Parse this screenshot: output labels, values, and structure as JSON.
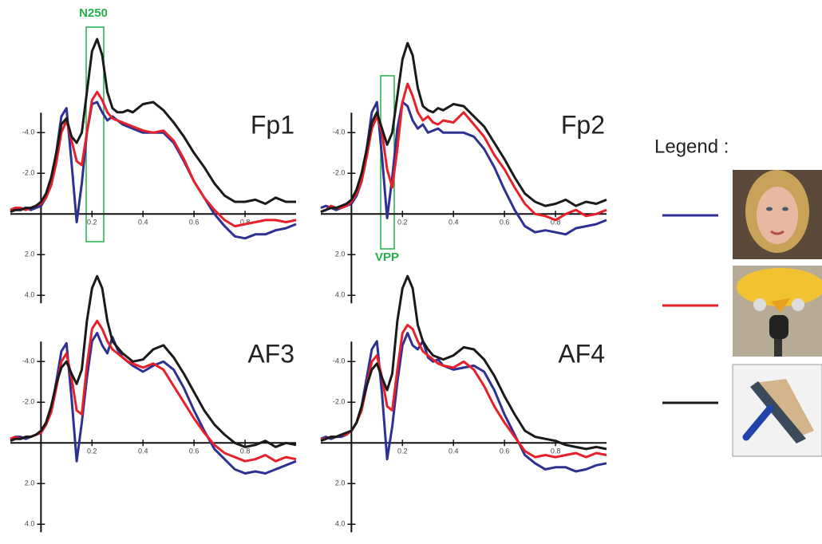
{
  "legend_title": "Legend :",
  "chart_data": [
    {
      "type": "line",
      "title": "Fp1",
      "annotation": "N250",
      "y_inverted": true,
      "x": [
        -0.12,
        -0.1,
        -0.08,
        -0.06,
        -0.04,
        -0.02,
        0,
        0.02,
        0.04,
        0.06,
        0.08,
        0.1,
        0.12,
        0.14,
        0.16,
        0.18,
        0.2,
        0.22,
        0.24,
        0.26,
        0.28,
        0.3,
        0.32,
        0.34,
        0.36,
        0.4,
        0.44,
        0.48,
        0.52,
        0.56,
        0.6,
        0.64,
        0.68,
        0.72,
        0.76,
        0.8,
        0.84,
        0.88,
        0.92,
        0.96,
        1.0
      ],
      "xlim": [
        -0.12,
        1.0
      ],
      "ylim": [
        -9.5,
        4.5
      ],
      "xticks": [
        0.2,
        0.4,
        0.6,
        0.8
      ],
      "yticks": [
        {
          "value": -4,
          "label": "-4.0"
        },
        {
          "value": -2,
          "label": "-2.0"
        },
        {
          "value": 2,
          "label": "2.0"
        },
        {
          "value": 4,
          "label": "4.0"
        }
      ],
      "series": [
        {
          "color": "#2e3192",
          "values": [
            -0.2,
            -0.3,
            -0.2,
            -0.3,
            -0.2,
            -0.3,
            -0.4,
            -0.8,
            -1.5,
            -3.0,
            -4.8,
            -5.2,
            -2.5,
            0.4,
            -1.5,
            -4.0,
            -5.4,
            -5.5,
            -5.0,
            -4.6,
            -4.8,
            -4.6,
            -4.4,
            -4.3,
            -4.2,
            -4.0,
            -4.0,
            -4.0,
            -3.5,
            -2.6,
            -1.6,
            -0.8,
            0.0,
            0.6,
            1.1,
            1.2,
            1.0,
            1.0,
            0.8,
            0.7,
            0.5
          ]
        },
        {
          "color": "#e8202a",
          "values": [
            -0.2,
            -0.3,
            -0.3,
            -0.2,
            -0.3,
            -0.4,
            -0.5,
            -0.8,
            -1.4,
            -2.5,
            -4.0,
            -4.6,
            -3.6,
            -2.6,
            -2.4,
            -4.0,
            -5.6,
            -6.0,
            -5.6,
            -5.0,
            -4.7,
            -4.6,
            -4.5,
            -4.4,
            -4.3,
            -4.1,
            -4.0,
            -4.1,
            -3.6,
            -2.7,
            -1.6,
            -0.8,
            -0.2,
            0.3,
            0.6,
            0.5,
            0.4,
            0.3,
            0.3,
            0.4,
            0.3
          ]
        },
        {
          "color": "#1a1a1a",
          "values": [
            -0.1,
            -0.2,
            -0.2,
            -0.3,
            -0.3,
            -0.4,
            -0.6,
            -1.0,
            -1.8,
            -3.0,
            -4.4,
            -4.7,
            -3.8,
            -3.5,
            -4.0,
            -6.0,
            -8.0,
            -8.6,
            -7.8,
            -6.0,
            -5.2,
            -5.0,
            -5.0,
            -5.1,
            -5.0,
            -5.4,
            -5.5,
            -5.1,
            -4.5,
            -3.8,
            -3.0,
            -2.3,
            -1.5,
            -0.9,
            -0.6,
            -0.6,
            -0.7,
            -0.5,
            -0.8,
            -0.6,
            -0.6
          ]
        }
      ]
    },
    {
      "type": "line",
      "title": "Fp2",
      "annotation": "VPP",
      "y_inverted": true,
      "x": [
        -0.12,
        -0.1,
        -0.08,
        -0.06,
        -0.04,
        -0.02,
        0,
        0.02,
        0.04,
        0.06,
        0.08,
        0.1,
        0.12,
        0.14,
        0.16,
        0.18,
        0.2,
        0.22,
        0.24,
        0.26,
        0.28,
        0.3,
        0.32,
        0.34,
        0.36,
        0.4,
        0.44,
        0.48,
        0.52,
        0.56,
        0.6,
        0.64,
        0.68,
        0.72,
        0.76,
        0.8,
        0.84,
        0.88,
        0.92,
        0.96,
        1.0
      ],
      "xlim": [
        -0.12,
        1.0
      ],
      "ylim": [
        -9.5,
        4.5
      ],
      "xticks": [
        0.2,
        0.4,
        0.6,
        0.8
      ],
      "yticks": [
        {
          "value": -4,
          "label": "-4.0"
        },
        {
          "value": -2,
          "label": "-2.0"
        },
        {
          "value": 2,
          "label": "2.0"
        },
        {
          "value": 4,
          "label": "4.0"
        }
      ],
      "series": [
        {
          "color": "#2e3192",
          "values": [
            -0.3,
            -0.4,
            -0.3,
            -0.2,
            -0.3,
            -0.4,
            -0.5,
            -0.9,
            -1.6,
            -3.2,
            -5.0,
            -5.5,
            -2.8,
            0.2,
            -1.8,
            -4.2,
            -5.5,
            -5.3,
            -4.6,
            -4.2,
            -4.4,
            -4.0,
            -4.1,
            -4.2,
            -4.0,
            -4.0,
            -4.0,
            -3.8,
            -3.2,
            -2.3,
            -1.2,
            -0.2,
            0.6,
            0.9,
            0.8,
            0.9,
            1.0,
            0.7,
            0.6,
            0.5,
            0.3
          ]
        },
        {
          "color": "#e8202a",
          "values": [
            -0.1,
            -0.2,
            -0.4,
            -0.3,
            -0.3,
            -0.4,
            -0.6,
            -1.0,
            -1.6,
            -2.8,
            -4.2,
            -4.8,
            -4.0,
            -2.2,
            -1.3,
            -3.2,
            -5.5,
            -6.4,
            -5.8,
            -5.0,
            -4.6,
            -4.8,
            -4.5,
            -4.4,
            -4.6,
            -4.5,
            -5.0,
            -4.4,
            -3.8,
            -2.9,
            -2.2,
            -1.3,
            -0.5,
            0.0,
            0.1,
            0.3,
            0.0,
            -0.2,
            0.1,
            0.0,
            -0.2
          ]
        },
        {
          "color": "#1a1a1a",
          "values": [
            -0.1,
            -0.2,
            -0.3,
            -0.3,
            -0.4,
            -0.5,
            -0.7,
            -1.2,
            -2.0,
            -3.2,
            -4.5,
            -5.0,
            -4.2,
            -3.4,
            -4.0,
            -5.8,
            -7.6,
            -8.4,
            -7.8,
            -6.2,
            -5.3,
            -5.1,
            -5.0,
            -5.2,
            -5.1,
            -5.4,
            -5.3,
            -4.8,
            -4.3,
            -3.5,
            -2.7,
            -1.8,
            -1.0,
            -0.6,
            -0.4,
            -0.5,
            -0.7,
            -0.4,
            -0.6,
            -0.5,
            -0.7
          ]
        }
      ]
    },
    {
      "type": "line",
      "title": "AF3",
      "y_inverted": true,
      "x": [
        -0.12,
        -0.1,
        -0.08,
        -0.06,
        -0.04,
        -0.02,
        0,
        0.02,
        0.04,
        0.06,
        0.08,
        0.1,
        0.12,
        0.14,
        0.16,
        0.18,
        0.2,
        0.22,
        0.24,
        0.26,
        0.28,
        0.3,
        0.32,
        0.34,
        0.36,
        0.4,
        0.44,
        0.48,
        0.52,
        0.56,
        0.6,
        0.64,
        0.68,
        0.72,
        0.76,
        0.8,
        0.84,
        0.88,
        0.92,
        0.96,
        1.0
      ],
      "xlim": [
        -0.12,
        1.0
      ],
      "ylim": [
        -9.5,
        4.5
      ],
      "xticks": [
        0.2,
        0.4,
        0.6,
        0.8
      ],
      "yticks": [
        {
          "value": -4,
          "label": "-4.0"
        },
        {
          "value": -2,
          "label": "-2.0"
        },
        {
          "value": 2,
          "label": "2.0"
        },
        {
          "value": 4,
          "label": "4.0"
        }
      ],
      "series": [
        {
          "color": "#2e3192",
          "values": [
            -0.2,
            -0.3,
            -0.3,
            -0.2,
            -0.3,
            -0.4,
            -0.5,
            -0.9,
            -1.6,
            -3.0,
            -4.5,
            -4.9,
            -2.2,
            0.9,
            -1.0,
            -3.2,
            -5.0,
            -5.4,
            -4.8,
            -4.4,
            -5.2,
            -4.6,
            -4.2,
            -4.0,
            -3.8,
            -3.5,
            -3.8,
            -4.0,
            -3.6,
            -2.7,
            -1.6,
            -0.6,
            0.3,
            0.8,
            1.3,
            1.5,
            1.4,
            1.5,
            1.3,
            1.1,
            0.9
          ]
        },
        {
          "color": "#e8202a",
          "values": [
            -0.2,
            -0.3,
            -0.2,
            -0.3,
            -0.3,
            -0.4,
            -0.5,
            -0.9,
            -1.5,
            -2.7,
            -4.0,
            -4.4,
            -3.2,
            -1.6,
            -1.4,
            -3.8,
            -5.6,
            -6.0,
            -5.6,
            -5.0,
            -4.6,
            -4.4,
            -4.2,
            -4.0,
            -3.9,
            -3.7,
            -3.9,
            -3.6,
            -2.8,
            -2.0,
            -1.2,
            -0.5,
            0.1,
            0.5,
            0.7,
            0.9,
            0.8,
            0.6,
            0.9,
            0.7,
            0.8
          ]
        },
        {
          "color": "#1a1a1a",
          "values": [
            -0.1,
            -0.2,
            -0.2,
            -0.3,
            -0.3,
            -0.4,
            -0.6,
            -1.0,
            -1.8,
            -2.9,
            -3.7,
            -4.0,
            -3.4,
            -2.9,
            -3.6,
            -6.0,
            -7.6,
            -8.2,
            -7.6,
            -6.0,
            -5.0,
            -4.7,
            -4.4,
            -4.2,
            -4.0,
            -4.1,
            -4.6,
            -4.8,
            -4.2,
            -3.4,
            -2.5,
            -1.6,
            -0.9,
            -0.4,
            0.0,
            0.2,
            0.1,
            -0.1,
            0.2,
            0.0,
            0.1
          ]
        }
      ]
    },
    {
      "type": "line",
      "title": "AF4",
      "y_inverted": true,
      "x": [
        -0.12,
        -0.1,
        -0.08,
        -0.06,
        -0.04,
        -0.02,
        0,
        0.02,
        0.04,
        0.06,
        0.08,
        0.1,
        0.12,
        0.14,
        0.16,
        0.18,
        0.2,
        0.22,
        0.24,
        0.26,
        0.28,
        0.3,
        0.32,
        0.34,
        0.36,
        0.4,
        0.44,
        0.48,
        0.52,
        0.56,
        0.6,
        0.64,
        0.68,
        0.72,
        0.76,
        0.8,
        0.84,
        0.88,
        0.92,
        0.96,
        1.0
      ],
      "xlim": [
        -0.12,
        1.0
      ],
      "ylim": [
        -9.5,
        4.5
      ],
      "xticks": [
        0.2,
        0.4,
        0.6,
        0.8
      ],
      "yticks": [
        {
          "value": -4,
          "label": "-4.0"
        },
        {
          "value": -2,
          "label": "-2.0"
        },
        {
          "value": 2,
          "label": "2.0"
        },
        {
          "value": 4,
          "label": "4.0"
        }
      ],
      "series": [
        {
          "color": "#2e3192",
          "values": [
            -0.2,
            -0.3,
            -0.2,
            -0.3,
            -0.3,
            -0.4,
            -0.6,
            -1.0,
            -1.8,
            -3.2,
            -4.6,
            -5.0,
            -2.4,
            0.8,
            -0.8,
            -3.0,
            -4.8,
            -5.4,
            -4.8,
            -4.6,
            -5.0,
            -4.2,
            -4.0,
            -4.1,
            -3.8,
            -3.6,
            -3.7,
            -3.8,
            -3.5,
            -2.6,
            -1.4,
            -0.4,
            0.6,
            1.0,
            1.3,
            1.2,
            1.2,
            1.4,
            1.3,
            1.1,
            1.0
          ]
        },
        {
          "color": "#e8202a",
          "values": [
            -0.2,
            -0.2,
            -0.3,
            -0.3,
            -0.4,
            -0.4,
            -0.6,
            -1.0,
            -1.6,
            -2.8,
            -4.0,
            -4.3,
            -3.2,
            -1.8,
            -1.6,
            -3.6,
            -5.4,
            -5.8,
            -5.6,
            -5.0,
            -4.5,
            -4.3,
            -4.1,
            -3.9,
            -3.8,
            -3.7,
            -4.0,
            -3.6,
            -2.8,
            -1.8,
            -1.0,
            -0.3,
            0.4,
            0.7,
            0.6,
            0.7,
            0.6,
            0.5,
            0.7,
            0.5,
            0.6
          ]
        },
        {
          "color": "#1a1a1a",
          "values": [
            -0.1,
            -0.2,
            -0.3,
            -0.3,
            -0.4,
            -0.5,
            -0.6,
            -1.0,
            -1.8,
            -2.8,
            -3.6,
            -3.9,
            -3.2,
            -2.6,
            -3.4,
            -6.0,
            -7.6,
            -8.2,
            -7.6,
            -5.8,
            -5.0,
            -4.6,
            -4.3,
            -4.2,
            -4.1,
            -4.3,
            -4.7,
            -4.6,
            -4.1,
            -3.3,
            -2.3,
            -1.4,
            -0.6,
            -0.3,
            -0.2,
            -0.1,
            0.1,
            0.2,
            0.3,
            0.2,
            0.3
          ]
        }
      ]
    }
  ]
}
